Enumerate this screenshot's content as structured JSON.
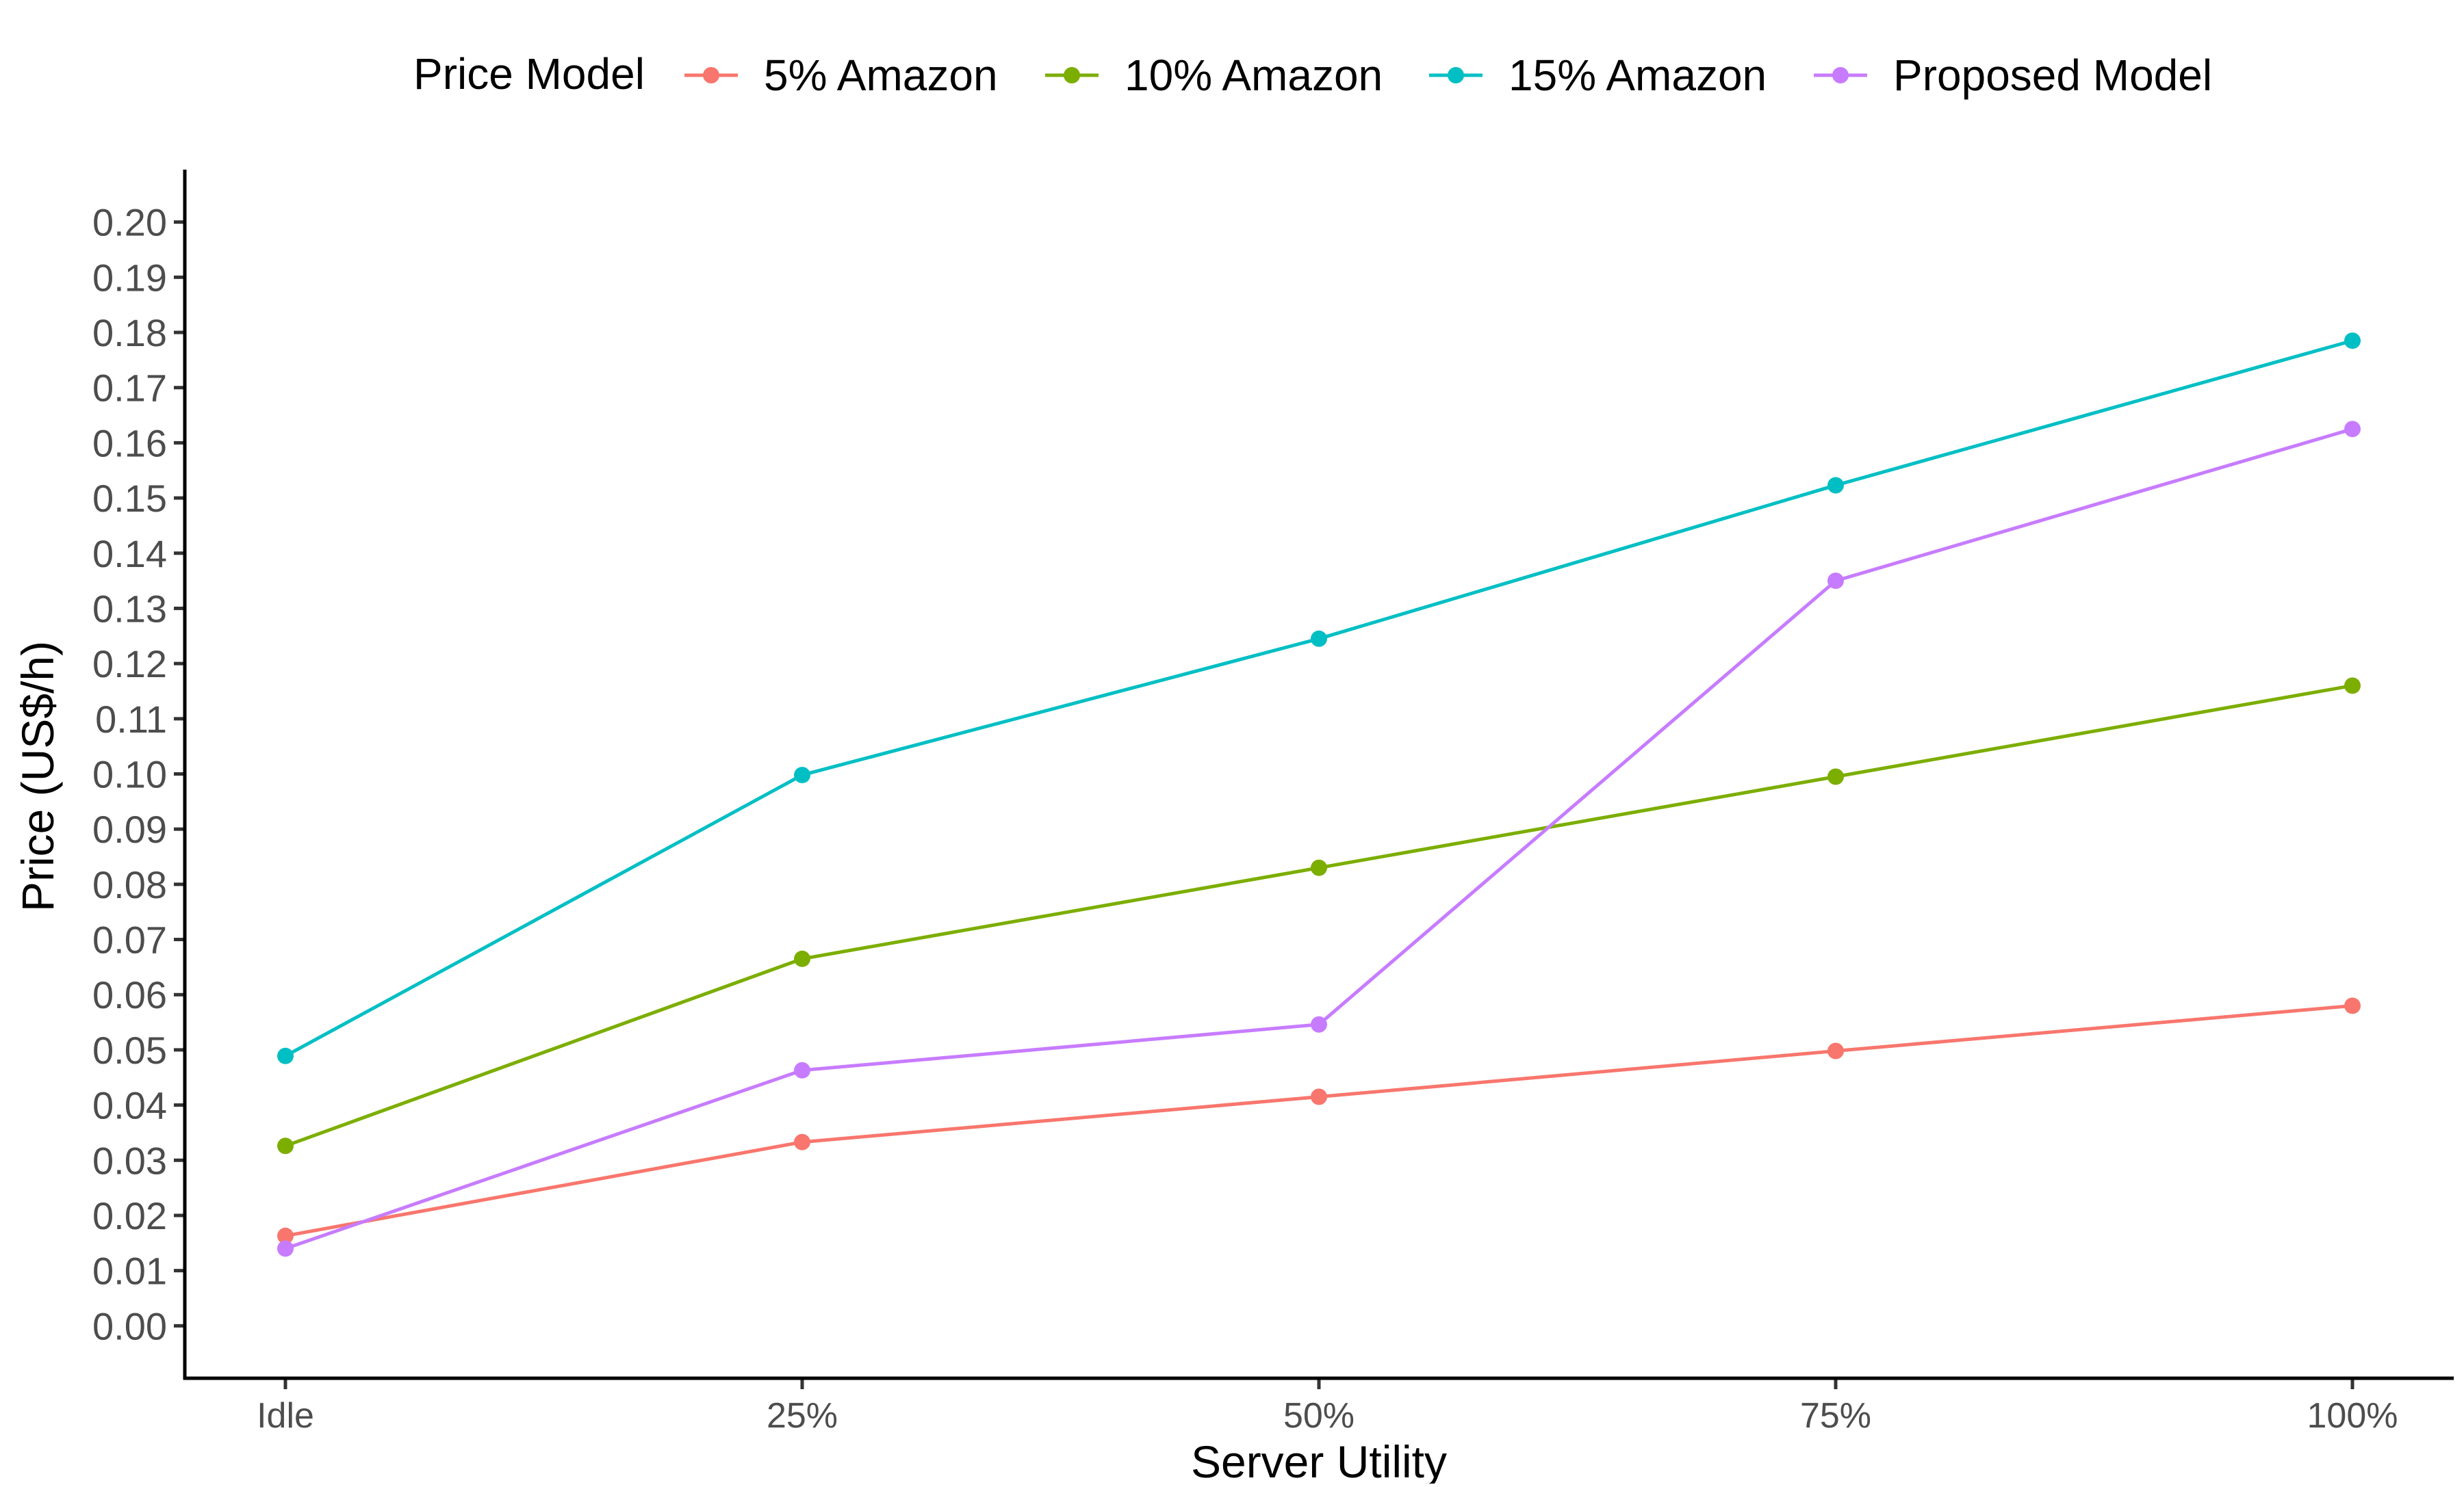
{
  "chart_data": {
    "type": "line",
    "xlabel": "Server Utility",
    "ylabel": "Price (US$/h)",
    "categories": [
      "Idle",
      "25%",
      "50%",
      "75%",
      "100%"
    ],
    "ylim": [
      -0.0095,
      0.2095
    ],
    "yticks": [
      0.0,
      0.01,
      0.02,
      0.03,
      0.04,
      0.05,
      0.06,
      0.07,
      0.08,
      0.09,
      0.1,
      0.11,
      0.12,
      0.13,
      0.14,
      0.15,
      0.16,
      0.17,
      0.18,
      0.19,
      0.2
    ],
    "yticklabels": [
      "0.00",
      "0.01",
      "0.02",
      "0.03",
      "0.04",
      "0.05",
      "0.06",
      "0.07",
      "0.08",
      "0.09",
      "0.10",
      "0.11",
      "0.12",
      "0.13",
      "0.14",
      "0.15",
      "0.16",
      "0.17",
      "0.18",
      "0.19",
      "0.20"
    ],
    "grid": false,
    "legend": {
      "title": "Price Model",
      "position": "top"
    },
    "series": [
      {
        "name": "5% Amazon",
        "color": "#F8766D",
        "values": [
          0.0163,
          0.0333,
          0.0415,
          0.0498,
          0.058
        ]
      },
      {
        "name": "10% Amazon",
        "color": "#7CAE00",
        "values": [
          0.0326,
          0.0665,
          0.083,
          0.0995,
          0.116
        ]
      },
      {
        "name": "15% Amazon",
        "color": "#00BFC4",
        "values": [
          0.0489,
          0.0998,
          0.1245,
          0.1523,
          0.1785
        ]
      },
      {
        "name": "Proposed Model",
        "color": "#C77CFF",
        "values": [
          0.014,
          0.0463,
          0.0546,
          0.135,
          0.1625
        ]
      }
    ]
  }
}
